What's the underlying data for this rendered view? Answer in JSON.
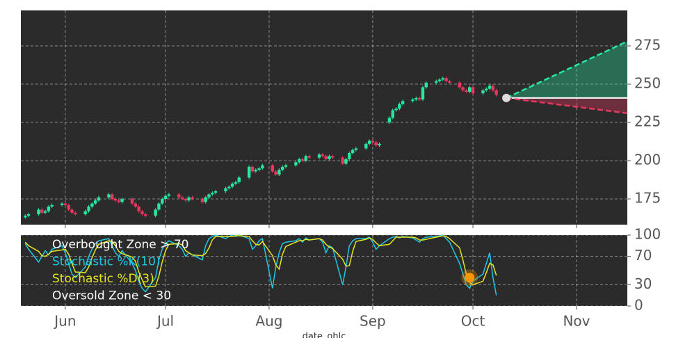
{
  "chart_data": [
    {
      "type": "candlestick",
      "x": [
        19,
        20,
        23,
        24,
        25,
        26,
        27,
        30,
        31,
        32,
        33,
        34,
        37,
        38,
        39,
        40,
        41,
        44,
        45,
        46,
        47,
        48,
        51,
        52,
        53,
        54,
        55,
        58,
        59,
        60,
        61,
        62,
        65,
        66,
        67,
        68,
        69,
        72,
        73,
        74,
        75,
        76,
        79,
        80,
        81,
        82,
        83,
        86,
        87,
        88,
        89,
        90,
        93,
        94,
        95,
        96,
        97,
        100,
        101,
        102,
        103,
        104,
        107,
        108,
        109,
        110,
        111,
        114,
        115,
        116,
        117,
        118,
        121,
        122,
        123,
        124,
        125,
        128,
        129,
        130,
        131,
        132,
        135,
        136,
        137,
        138,
        139,
        142,
        143,
        144,
        145,
        146,
        149,
        150,
        151,
        152,
        153,
        156,
        157,
        158,
        159,
        160
      ],
      "open": [
        163,
        164,
        165,
        168,
        166,
        167,
        170,
        171,
        172,
        171,
        168,
        166,
        165,
        167,
        170,
        172,
        174,
        176,
        178,
        175,
        174,
        173,
        175,
        172,
        170,
        167,
        165,
        164,
        168,
        172,
        175,
        177,
        178,
        176,
        175,
        174,
        176,
        175,
        173,
        176,
        178,
        179,
        180,
        182,
        183,
        185,
        186,
        189,
        196,
        193,
        194,
        195,
        197,
        193,
        191,
        194,
        196,
        197,
        199,
        201,
        200,
        203,
        202,
        204,
        203,
        201,
        203,
        202,
        198,
        201,
        205,
        207,
        208,
        211,
        213,
        212,
        210,
        225,
        228,
        233,
        234,
        237,
        239,
        240,
        241,
        240,
        248,
        251,
        252,
        253,
        254,
        252,
        251,
        248,
        246,
        245,
        248,
        244,
        246,
        247,
        249,
        246
      ],
      "high": [
        165,
        166,
        169,
        169,
        168,
        171,
        172,
        173,
        173,
        172,
        169,
        167,
        168,
        171,
        173,
        175,
        177,
        179,
        179,
        176,
        175,
        176,
        176,
        173,
        171,
        168,
        166,
        169,
        173,
        176,
        178,
        179,
        179,
        177,
        176,
        177,
        177,
        176,
        177,
        179,
        180,
        181,
        183,
        184,
        186,
        187,
        190,
        197,
        197,
        195,
        196,
        198,
        198,
        194,
        195,
        197,
        198,
        200,
        202,
        202,
        204,
        204,
        205,
        205,
        204,
        204,
        204,
        203,
        202,
        206,
        208,
        209,
        212,
        214,
        214,
        213,
        212,
        229,
        234,
        235,
        238,
        240,
        241,
        242,
        242,
        249,
        252,
        253,
        254,
        255,
        255,
        253,
        252,
        249,
        247,
        249,
        249,
        247,
        248,
        250,
        250,
        247
      ],
      "low": [
        162,
        163,
        164,
        165,
        165,
        166,
        169,
        170,
        170,
        167,
        165,
        164,
        164,
        166,
        169,
        171,
        173,
        175,
        174,
        173,
        172,
        172,
        171,
        169,
        166,
        164,
        163,
        163,
        167,
        171,
        174,
        176,
        175,
        174,
        173,
        173,
        174,
        172,
        172,
        175,
        177,
        178,
        179,
        181,
        182,
        184,
        185,
        188,
        192,
        192,
        193,
        194,
        192,
        190,
        190,
        193,
        195,
        196,
        198,
        199,
        199,
        201,
        201,
        202,
        200,
        200,
        201,
        197,
        197,
        200,
        204,
        206,
        207,
        210,
        211,
        209,
        209,
        224,
        227,
        232,
        233,
        236,
        238,
        239,
        239,
        239,
        247,
        250,
        251,
        252,
        251,
        250,
        247,
        245,
        244,
        244,
        243,
        243,
        245,
        246,
        245,
        242
      ],
      "close": [
        164,
        165,
        168,
        166,
        167,
        170,
        171,
        172,
        171,
        168,
        166,
        165,
        167,
        170,
        172,
        174,
        176,
        178,
        175,
        174,
        173,
        175,
        172,
        170,
        167,
        165,
        164,
        168,
        172,
        175,
        177,
        178,
        176,
        175,
        174,
        176,
        175,
        173,
        176,
        178,
        179,
        180,
        182,
        183,
        185,
        186,
        189,
        196,
        193,
        194,
        195,
        197,
        193,
        191,
        194,
        196,
        197,
        199,
        201,
        200,
        203,
        202,
        204,
        203,
        201,
        203,
        202,
        198,
        201,
        205,
        207,
        208,
        211,
        213,
        212,
        210,
        211,
        228,
        233,
        234,
        237,
        239,
        240,
        241,
        240,
        248,
        251,
        252,
        253,
        254,
        252,
        251,
        248,
        246,
        245,
        248,
        244,
        246,
        247,
        249,
        246,
        243
      ],
      "up_color": "#26e8a0",
      "down_color": "#e8375f",
      "forecast": {
        "x": [
          163,
          199.2
        ],
        "start": 241,
        "upper": 278,
        "lower": 231,
        "upper_color": "#26e8a0",
        "lower_color": "#e8375f",
        "dot_color": "#dddddd"
      },
      "xlim": [
        17.7,
        199.2
      ],
      "ylim": [
        158.2,
        298.2
      ],
      "yticks": [
        175,
        200,
        225,
        250,
        275
      ],
      "grid": true
    },
    {
      "type": "line",
      "series": [
        {
          "name": "Stochastic %K(10)",
          "color": "#1ec8e6",
          "values": [
            88,
            80,
            62,
            70,
            78,
            72,
            80,
            85,
            75,
            60,
            45,
            40,
            55,
            70,
            80,
            88,
            92,
            95,
            85,
            75,
            70,
            78,
            60,
            50,
            35,
            25,
            20,
            40,
            65,
            80,
            88,
            92,
            85,
            80,
            70,
            75,
            72,
            65,
            85,
            95,
            98,
            100,
            95,
            98,
            100,
            98,
            100,
            95,
            80,
            85,
            92,
            95,
            25,
            55,
            75,
            88,
            90,
            92,
            95,
            90,
            96,
            93,
            95,
            90,
            75,
            85,
            82,
            30,
            55,
            85,
            92,
            95,
            95,
            97,
            90,
            80,
            85,
            95,
            97,
            98,
            96,
            98,
            96,
            93,
            90,
            95,
            97,
            98,
            99,
            100,
            95,
            90,
            60,
            45,
            30,
            25,
            35,
            45,
            60,
            75,
            40,
            15
          ]
        },
        {
          "name": "Stochastic %D(3)",
          "color": "#e6e61e",
          "values": [
            90,
            85,
            77,
            71,
            70,
            73,
            77,
            79,
            80,
            73,
            60,
            48,
            47,
            55,
            68,
            79,
            87,
            92,
            91,
            85,
            77,
            74,
            69,
            63,
            48,
            37,
            27,
            28,
            42,
            62,
            78,
            87,
            88,
            86,
            78,
            75,
            72,
            71,
            74,
            82,
            93,
            98,
            98,
            98,
            98,
            99,
            99,
            98,
            92,
            87,
            86,
            91,
            71,
            58,
            52,
            73,
            84,
            90,
            92,
            92,
            94,
            93,
            95,
            93,
            87,
            83,
            81,
            66,
            56,
            57,
            77,
            91,
            94,
            96,
            94,
            89,
            85,
            87,
            92,
            97,
            97,
            97,
            97,
            96,
            93,
            93,
            94,
            97,
            98,
            99,
            98,
            95,
            82,
            65,
            45,
            33,
            30,
            35,
            47,
            60,
            58,
            43
          ]
        }
      ],
      "zones": [
        {
          "text": "Overbought Zone > 70",
          "color": "#ffffff"
        },
        {
          "text": "Oversold Zone < 30",
          "color": "#ffffff"
        }
      ],
      "marker": {
        "x": 152,
        "value": 40,
        "color": "#ff9500"
      },
      "xlabel": "date_ohlc",
      "xticks": [
        {
          "value": 31,
          "label": "Jun"
        },
        {
          "value": 61,
          "label": "Jul"
        },
        {
          "value": 92,
          "label": "Aug"
        },
        {
          "value": 123,
          "label": "Sep"
        },
        {
          "value": 153,
          "label": "Oct"
        },
        {
          "value": 184,
          "label": "Nov"
        }
      ],
      "ylim": [
        0,
        100
      ],
      "yticks": [
        0,
        30,
        70,
        100
      ],
      "grid": true
    }
  ]
}
